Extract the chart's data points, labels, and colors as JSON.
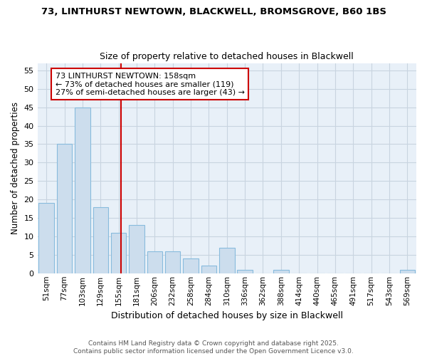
{
  "title1": "73, LINTHURST NEWTOWN, BLACKWELL, BROMSGROVE, B60 1BS",
  "title2": "Size of property relative to detached houses in Blackwell",
  "xlabel": "Distribution of detached houses by size in Blackwell",
  "ylabel": "Number of detached properties",
  "bin_labels": [
    "51sqm",
    "77sqm",
    "103sqm",
    "129sqm",
    "155sqm",
    "181sqm",
    "206sqm",
    "232sqm",
    "258sqm",
    "284sqm",
    "310sqm",
    "336sqm",
    "362sqm",
    "388sqm",
    "414sqm",
    "440sqm",
    "465sqm",
    "491sqm",
    "517sqm",
    "543sqm",
    "569sqm"
  ],
  "values": [
    19,
    35,
    45,
    18,
    11,
    13,
    6,
    6,
    4,
    2,
    7,
    1,
    0,
    1,
    0,
    0,
    0,
    0,
    0,
    0,
    1
  ],
  "bar_color": "#ccdded",
  "bar_edge_color": "#88bbdd",
  "grid_color": "#c8d4e0",
  "plot_bg_color": "#e8f0f8",
  "fig_bg_color": "#ffffff",
  "red_line_color": "#cc0000",
  "annotation_text": "73 LINTHURST NEWTOWN: 158sqm\n← 73% of detached houses are smaller (119)\n27% of semi-detached houses are larger (43) →",
  "annotation_box_color": "#ffffff",
  "annotation_box_edge": "#cc0000",
  "ylim": [
    0,
    57
  ],
  "yticks": [
    0,
    5,
    10,
    15,
    20,
    25,
    30,
    35,
    40,
    45,
    50,
    55
  ],
  "footer1": "Contains HM Land Registry data © Crown copyright and database right 2025.",
  "footer2": "Contains public sector information licensed under the Open Government Licence v3.0."
}
